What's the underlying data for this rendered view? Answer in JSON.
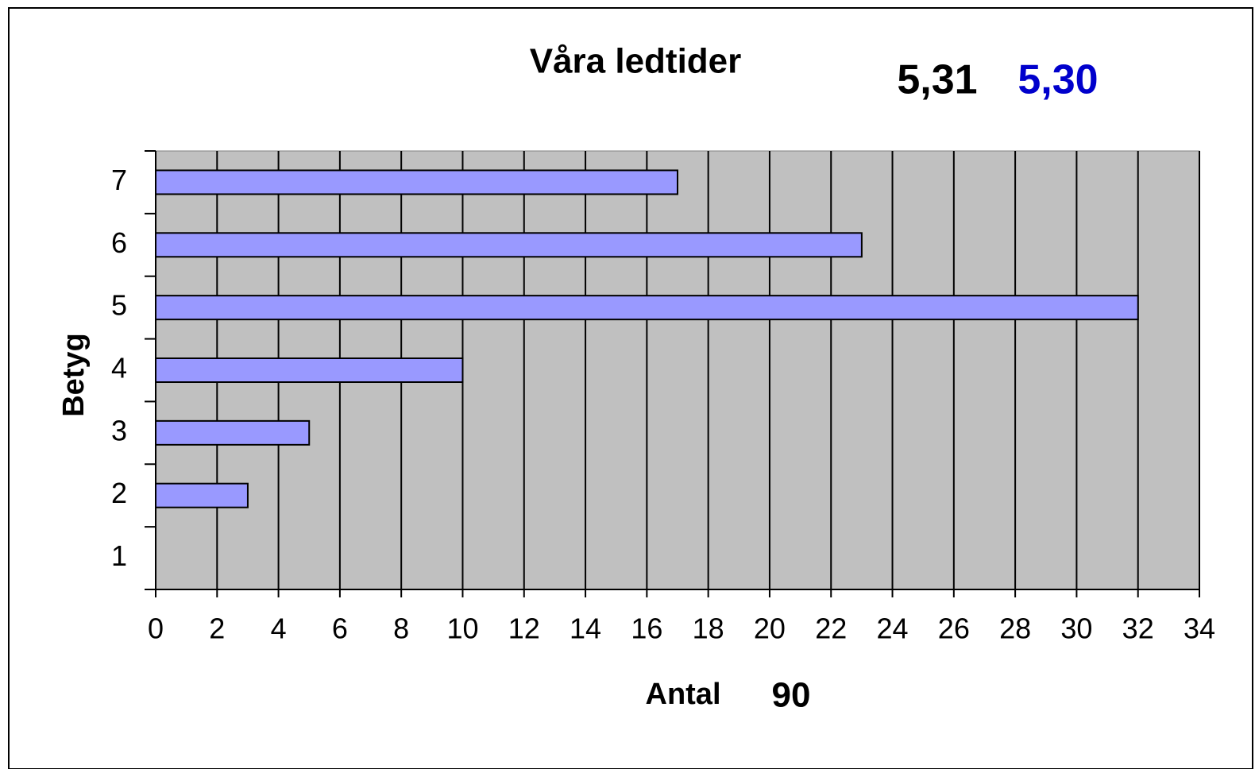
{
  "chart_data": {
    "type": "barh",
    "title": "Våra ledtider",
    "categories": [
      "1",
      "2",
      "3",
      "4",
      "5",
      "6",
      "7"
    ],
    "values": [
      0,
      3,
      5,
      10,
      32,
      23,
      17
    ],
    "color": "#9999ff",
    "plot_background": "#c0c0c0",
    "grid": true,
    "xlim": [
      0,
      34
    ],
    "xticks": [
      0,
      2,
      4,
      6,
      8,
      10,
      12,
      14,
      16,
      18,
      20,
      22,
      24,
      26,
      28,
      30,
      32,
      34
    ],
    "x_label": "Antal",
    "y_label": "Betyg",
    "annotations": [
      {
        "text": "5,31",
        "color": "#000000"
      },
      {
        "text": "5,30",
        "color": "#0000cc"
      },
      {
        "text": "90",
        "color": "#000000"
      }
    ]
  }
}
